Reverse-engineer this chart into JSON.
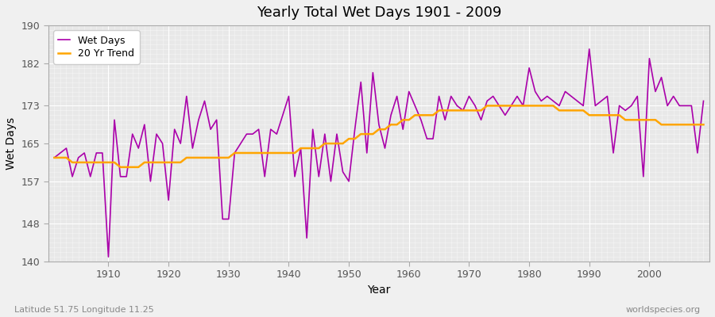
{
  "title": "Yearly Total Wet Days 1901 - 2009",
  "xlabel": "Year",
  "ylabel": "Wet Days",
  "footnote_left": "Latitude 51.75 Longitude 11.25",
  "footnote_right": "worldspecies.org",
  "ylim": [
    140,
    190
  ],
  "yticks": [
    140,
    148,
    157,
    165,
    173,
    182,
    190
  ],
  "line_color": "#aa00aa",
  "trend_color": "#ffa500",
  "bg_color": "#f0f0f0",
  "plot_bg_color": "#e8e8e8",
  "years": [
    1901,
    1902,
    1903,
    1904,
    1905,
    1906,
    1907,
    1908,
    1909,
    1910,
    1911,
    1912,
    1913,
    1914,
    1915,
    1916,
    1917,
    1918,
    1919,
    1920,
    1921,
    1922,
    1923,
    1924,
    1925,
    1926,
    1927,
    1928,
    1929,
    1930,
    1931,
    1932,
    1933,
    1934,
    1935,
    1936,
    1937,
    1938,
    1939,
    1940,
    1941,
    1942,
    1943,
    1944,
    1945,
    1946,
    1947,
    1948,
    1949,
    1950,
    1951,
    1952,
    1953,
    1954,
    1955,
    1956,
    1957,
    1958,
    1959,
    1960,
    1961,
    1962,
    1963,
    1964,
    1965,
    1966,
    1967,
    1968,
    1969,
    1970,
    1971,
    1972,
    1973,
    1974,
    1975,
    1976,
    1977,
    1978,
    1979,
    1980,
    1981,
    1982,
    1983,
    1984,
    1985,
    1986,
    1987,
    1988,
    1989,
    1990,
    1991,
    1992,
    1993,
    1994,
    1995,
    1996,
    1997,
    1998,
    1999,
    2000,
    2001,
    2002,
    2003,
    2004,
    2005,
    2006,
    2007,
    2008,
    2009
  ],
  "wet_days": [
    162,
    163,
    164,
    158,
    162,
    163,
    158,
    163,
    163,
    141,
    170,
    158,
    158,
    167,
    164,
    169,
    157,
    167,
    165,
    153,
    168,
    165,
    175,
    164,
    170,
    174,
    168,
    170,
    149,
    149,
    163,
    165,
    167,
    167,
    168,
    158,
    168,
    167,
    171,
    175,
    158,
    164,
    145,
    168,
    158,
    167,
    157,
    167,
    159,
    157,
    168,
    178,
    163,
    180,
    169,
    164,
    171,
    175,
    168,
    176,
    173,
    170,
    166,
    166,
    175,
    170,
    175,
    173,
    172,
    175,
    173,
    170,
    174,
    175,
    173,
    171,
    173,
    175,
    173,
    181,
    176,
    174,
    175,
    174,
    173,
    176,
    175,
    174,
    173,
    185,
    173,
    174,
    175,
    163,
    173,
    172,
    173,
    175,
    158,
    183,
    176,
    179,
    173,
    175,
    173,
    173,
    173,
    163,
    174
  ],
  "trend": [
    162,
    162,
    162,
    161,
    161,
    161,
    161,
    161,
    161,
    161,
    161,
    160,
    160,
    160,
    160,
    161,
    161,
    161,
    161,
    161,
    161,
    161,
    162,
    162,
    162,
    162,
    162,
    162,
    162,
    162,
    163,
    163,
    163,
    163,
    163,
    163,
    163,
    163,
    163,
    163,
    163,
    164,
    164,
    164,
    164,
    165,
    165,
    165,
    165,
    166,
    166,
    167,
    167,
    167,
    168,
    168,
    169,
    169,
    170,
    170,
    171,
    171,
    171,
    171,
    172,
    172,
    172,
    172,
    172,
    172,
    172,
    172,
    173,
    173,
    173,
    173,
    173,
    173,
    173,
    173,
    173,
    173,
    173,
    173,
    172,
    172,
    172,
    172,
    172,
    171,
    171,
    171,
    171,
    171,
    171,
    170,
    170,
    170,
    170,
    170,
    170,
    169,
    169,
    169,
    169,
    169,
    169,
    169,
    169
  ]
}
